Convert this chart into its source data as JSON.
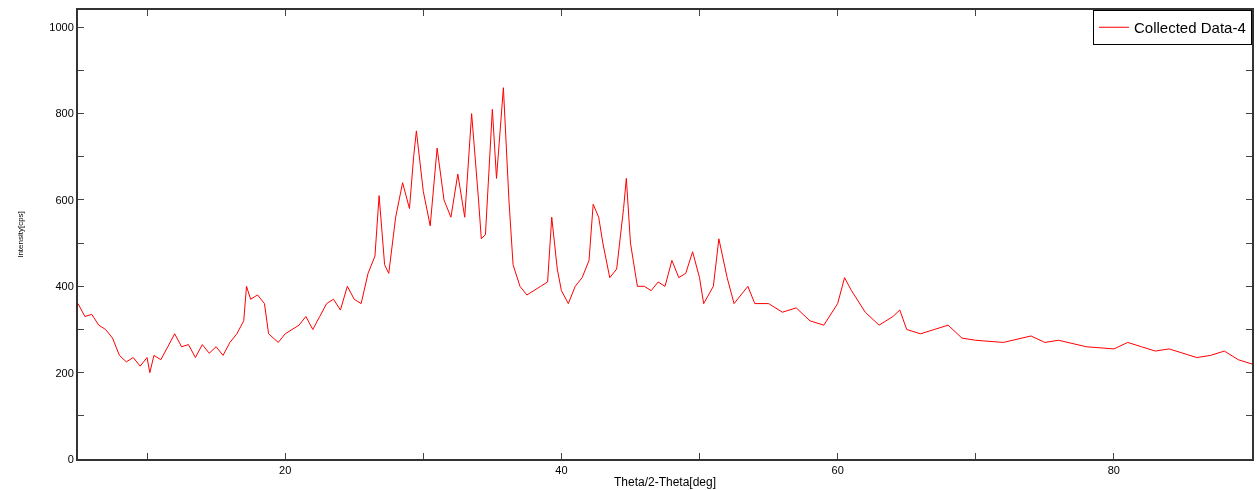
{
  "chart_data": {
    "type": "line",
    "xlabel": "Theta/2-Theta[deg]",
    "ylabel": "Intensity[cps]",
    "xlim": [
      5,
      90
    ],
    "ylim": [
      0,
      1040
    ],
    "xticks": [
      {
        "value": 10,
        "label": null
      },
      20,
      {
        "value": 30,
        "label": null
      },
      40,
      {
        "value": 50,
        "label": null
      },
      60,
      {
        "value": 70,
        "label": null
      },
      80,
      {
        "value": 90,
        "label": null
      }
    ],
    "yticks": [
      0,
      {
        "value": 100,
        "label": null
      },
      200,
      {
        "value": 300,
        "label": null
      },
      400,
      {
        "value": 500,
        "label": null
      },
      600,
      {
        "value": 700,
        "label": null
      },
      800,
      {
        "value": 900,
        "label": null
      },
      1000
    ],
    "grid": false,
    "legend": "top right",
    "marker": "none",
    "line_style": "solid",
    "series": [
      {
        "name": "Collected Data-4",
        "color": "#ff0000",
        "x": [
          5,
          5.5,
          6,
          6.5,
          7,
          7.5,
          8,
          8.5,
          9,
          9.5,
          10,
          10.2,
          10.5,
          11,
          11.5,
          12,
          12.5,
          13,
          13.5,
          14,
          14.5,
          15,
          15.5,
          16,
          16.5,
          17,
          17.2,
          17.5,
          18,
          18.5,
          18.8,
          19.5,
          20,
          21,
          21.5,
          22,
          22.5,
          23,
          23.5,
          24,
          24.5,
          25,
          25.5,
          26,
          26.5,
          26.8,
          27.2,
          27.5,
          28,
          28.5,
          29,
          29.3,
          29.5,
          30,
          30.5,
          31,
          31.5,
          32,
          32.5,
          33,
          33.5,
          34,
          34.2,
          34.5,
          35,
          35.3,
          35.8,
          36.2,
          36.5,
          37,
          37.5,
          38,
          38.5,
          39,
          39.3,
          39.7,
          40,
          40.5,
          41,
          41.5,
          42,
          42.3,
          42.7,
          43,
          43.5,
          44,
          44.5,
          44.7,
          45,
          45.5,
          46,
          46.5,
          47,
          47.5,
          48,
          48.5,
          49,
          49.5,
          50,
          50.3,
          51,
          51.4,
          52,
          52.5,
          53,
          53.5,
          54,
          55,
          56,
          57,
          58,
          59,
          60,
          60.5,
          61,
          62,
          63,
          64,
          64.5,
          65,
          66,
          67,
          68,
          69,
          70,
          72,
          74,
          75,
          76,
          78,
          80,
          81,
          82,
          83,
          84,
          85,
          86,
          87,
          88,
          89,
          90
        ],
        "values": [
          360,
          330,
          335,
          310,
          300,
          280,
          240,
          225,
          235,
          215,
          235,
          200,
          240,
          230,
          260,
          290,
          260,
          265,
          235,
          265,
          245,
          260,
          240,
          270,
          290,
          320,
          400,
          370,
          380,
          360,
          290,
          270,
          290,
          310,
          330,
          300,
          330,
          360,
          370,
          345,
          400,
          370,
          360,
          430,
          470,
          610,
          450,
          430,
          560,
          640,
          580,
          700,
          760,
          620,
          540,
          720,
          600,
          560,
          660,
          560,
          800,
          600,
          510,
          520,
          810,
          650,
          860,
          600,
          450,
          400,
          380,
          390,
          400,
          410,
          560,
          440,
          390,
          360,
          400,
          420,
          460,
          590,
          560,
          500,
          420,
          440,
          580,
          650,
          500,
          400,
          400,
          390,
          410,
          400,
          460,
          420,
          430,
          480,
          420,
          360,
          400,
          510,
          420,
          360,
          380,
          400,
          360,
          360,
          340,
          350,
          320,
          310,
          360,
          420,
          390,
          340,
          310,
          330,
          345,
          300,
          290,
          300,
          310,
          280,
          275,
          270,
          285,
          270,
          275,
          260,
          255,
          270,
          260,
          250,
          255,
          245,
          235,
          240,
          250,
          230,
          220
        ]
      }
    ]
  }
}
